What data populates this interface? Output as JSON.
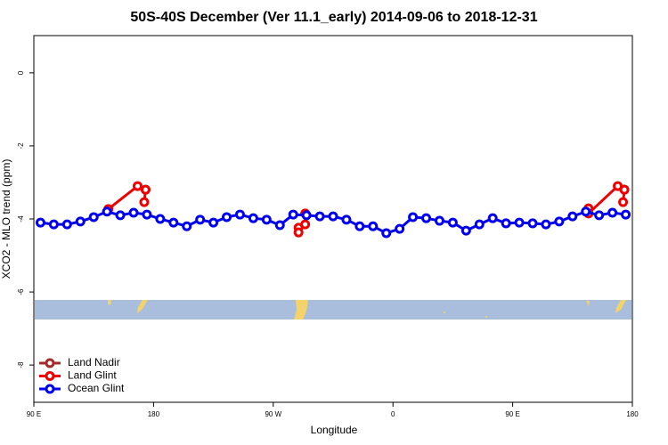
{
  "chart_data": {
    "type": "line",
    "title": "50S-40S December (Ver 11.1_early)   2014-09-06 to 2018-12-31",
    "xlabel": "Longitude",
    "ylabel": "XCO2 - MLO trend (ppm)",
    "xlim": [
      90,
      540
    ],
    "ylim": [
      -9.02,
      1.02
    ],
    "xticks": [
      {
        "value": 90,
        "label": "90 E"
      },
      {
        "value": 180,
        "label": "180"
      },
      {
        "value": 270,
        "label": "90 W"
      },
      {
        "value": 360,
        "label": "0"
      },
      {
        "value": 450,
        "label": "90 E"
      },
      {
        "value": 540,
        "label": "180"
      }
    ],
    "yticks": [
      0,
      -2,
      -4,
      -6,
      -8
    ],
    "legend": "bottom-left",
    "series": [
      {
        "name": "Land Nadir",
        "color": "#a52a2a",
        "x": [
          174,
          null,
          534
        ],
        "values": [
          -3.2,
          null,
          -3.2
        ]
      },
      {
        "name": "Land Glint",
        "color": "#ee0000",
        "x": [
          146,
          168,
          174,
          173,
          null,
          289,
          289,
          294,
          294,
          null,
          507,
          507,
          529,
          534,
          533
        ],
        "values": [
          -3.73,
          -3.1,
          -3.2,
          -3.54,
          null,
          -4.24,
          -4.37,
          -4.15,
          -3.85,
          null,
          -3.71,
          -3.85,
          -3.1,
          -3.2,
          -3.54
        ]
      },
      {
        "name": "Ocean Glint",
        "color": "#0000ee",
        "x": [
          95,
          105,
          115,
          125,
          135,
          145,
          155,
          165,
          175,
          185,
          195,
          205,
          215,
          225,
          235,
          245,
          255,
          265,
          275,
          285,
          295,
          305,
          315,
          325,
          335,
          345,
          355,
          365,
          375,
          385,
          395,
          405,
          415,
          425,
          435,
          445,
          455,
          465,
          475,
          485,
          495,
          505,
          515,
          525,
          535
        ],
        "values": [
          -4.1,
          -4.15,
          -4.15,
          -4.07,
          -3.95,
          -3.8,
          -3.9,
          -3.83,
          -3.88,
          -4.0,
          -4.1,
          -4.2,
          -4.02,
          -4.1,
          -3.95,
          -3.88,
          -3.98,
          -4.02,
          -4.17,
          -3.88,
          -3.9,
          -3.93,
          -3.93,
          -4.02,
          -4.2,
          -4.2,
          -4.39,
          -4.27,
          -3.95,
          -3.98,
          -4.05,
          -4.1,
          -4.32,
          -4.15,
          -3.98,
          -4.12,
          -4.1,
          -4.12,
          -4.15,
          -4.07,
          -3.93,
          -3.8,
          -3.9,
          -3.83,
          -3.88
        ]
      }
    ]
  }
}
